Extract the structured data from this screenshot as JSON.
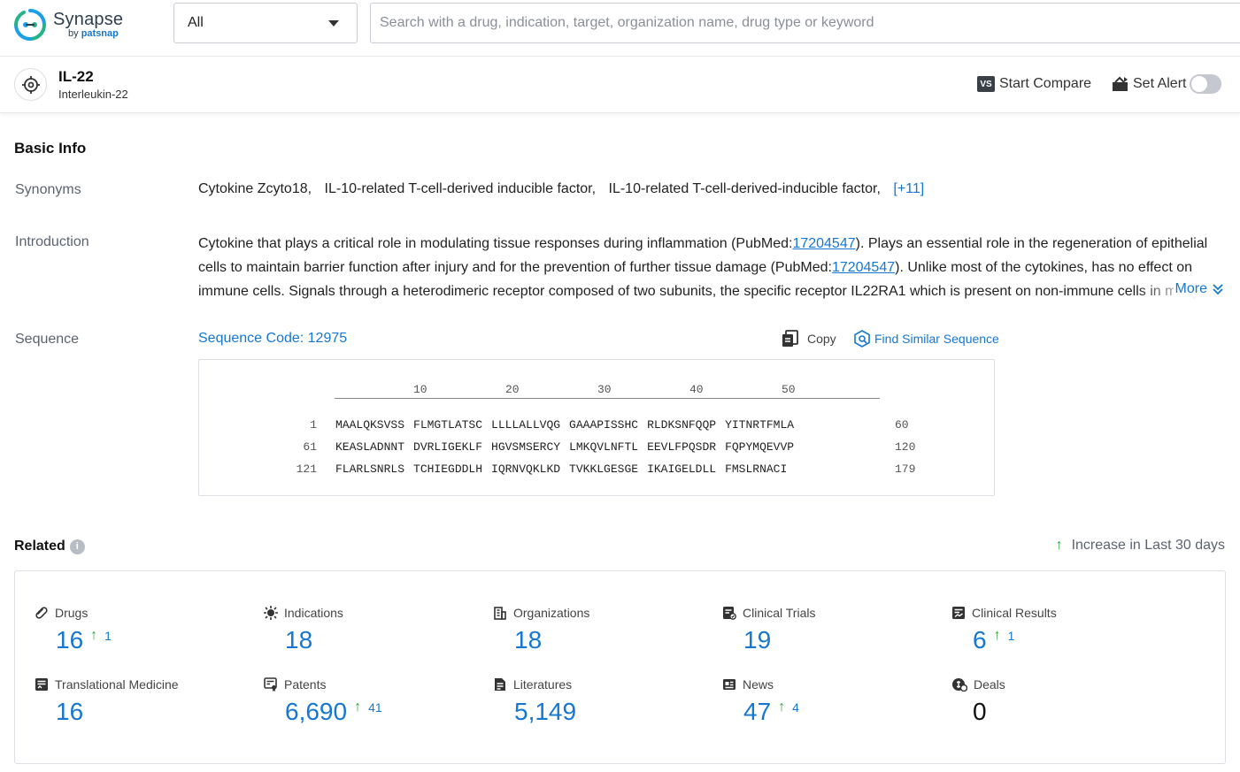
{
  "app": {
    "brand": "Synapse",
    "by_label": "by",
    "by_brand": "patsnap"
  },
  "search": {
    "scope_value": "All",
    "placeholder": "Search with a drug, indication, target, organization name, drug type or keyword"
  },
  "target": {
    "name": "IL-22",
    "full_name": "Interleukin-22",
    "compare_badge": "VS",
    "compare_label": "Start Compare",
    "alert_label": "Set Alert",
    "alert_enabled": false
  },
  "basic_info": {
    "title": "Basic Info",
    "synonyms_label": "Synonyms",
    "synonyms": [
      "Cytokine Zcyto18,",
      "IL-10-related T-cell-derived inducible factor,",
      "IL-10-related T-cell-derived-inducible factor,"
    ],
    "synonyms_more": "[+11]",
    "introduction_label": "Introduction",
    "intro_parts": {
      "p1": "Cytokine that plays a critical role in modulating tissue responses during inflammation (PubMed:",
      "pm1": "17204547",
      "p2": "). Plays an essential role in the regeneration of epithelial cells to maintain barrier function after injury and for the prevention of further tissue damage (PubMed:",
      "pm2": "17204547",
      "p3": "). Unlike most of the cytokines, has no effect on immune cells. Signals through a heterodimeric receptor composed of two subunits, the specific receptor IL22RA1 which is present on non-immune cells in many organs"
    },
    "more_label": "More",
    "sequence_label": "Sequence",
    "sequence_code": "Sequence Code: 12975",
    "copy_label": "Copy",
    "find_similar_label": "Find Similar Sequence",
    "ruler_ticks": [
      "10",
      "20",
      "30",
      "40",
      "50"
    ],
    "sequence_rows": [
      {
        "start": "1",
        "chunks": [
          "MAALQKSVSS",
          "FLMGTLATSC",
          "LLLLALLVQG",
          "GAAAPISSHC",
          "RLDKSNFQQP",
          "YITNRTFMLA"
        ],
        "end": "60"
      },
      {
        "start": "61",
        "chunks": [
          "KEASLADNNT",
          "DVRLIGEKLF",
          "HGVSMSERCY",
          "LMKQVLNFTL",
          "EEVLFPQSDR",
          "FQPYMQEVVP"
        ],
        "end": "120"
      },
      {
        "start": "121",
        "chunks": [
          "FLARLSNRLS",
          "TCHIEGDDLH",
          "IQRNVQKLKD",
          "TVKKLGESGE",
          "IKAIGELDLL",
          "FMSLRNACI"
        ],
        "end": "179"
      }
    ]
  },
  "related": {
    "title": "Related",
    "info_glyph": "i",
    "increase_arrow": "↑",
    "increase_note": "Increase in Last 30 days",
    "stats": [
      {
        "label": "Drugs",
        "value": "16",
        "increase": "1",
        "icon": "pill-icon"
      },
      {
        "label": "Indications",
        "value": "18",
        "increase": "",
        "icon": "virus-icon"
      },
      {
        "label": "Organizations",
        "value": "18",
        "increase": "",
        "icon": "building-icon"
      },
      {
        "label": "Clinical Trials",
        "value": "19",
        "increase": "",
        "icon": "clipboard-icon"
      },
      {
        "label": "Clinical Results",
        "value": "6",
        "increase": "1",
        "icon": "results-icon"
      },
      {
        "label": "Translational Medicine",
        "value": "16",
        "increase": "",
        "icon": "document-icon"
      },
      {
        "label": "Patents",
        "value": "6,690",
        "increase": "41",
        "icon": "patent-icon"
      },
      {
        "label": "Literatures",
        "value": "5,149",
        "increase": "",
        "icon": "literature-icon"
      },
      {
        "label": "News",
        "value": "47",
        "increase": "4",
        "icon": "news-icon"
      },
      {
        "label": "Deals",
        "value": "0",
        "increase": "",
        "icon": "deals-icon"
      }
    ]
  },
  "colors": {
    "accent": "#1677d2",
    "increase": "#2aa834",
    "label_gray": "#5c6370",
    "border": "#dcdfe4"
  }
}
